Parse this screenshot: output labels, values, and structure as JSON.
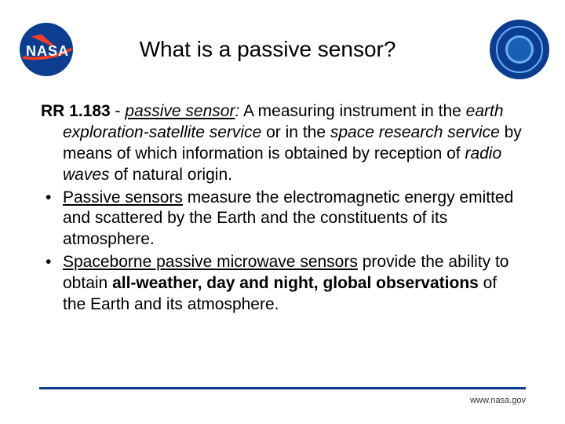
{
  "header": {
    "nasa_wordmark": "NASA",
    "title": "What is a passive sensor?"
  },
  "definition": {
    "ref": "RR 1.183",
    "sep": " - ",
    "term": "passive sensor",
    "colon": ":",
    "pre1": "  A measuring instrument in the ",
    "svc1": "earth exploration-satellite service",
    "mid1": " or in the ",
    "svc2": "space research service",
    "mid2": " by means of which information is obtained by reception of ",
    "rw": "radio waves",
    "tail": " of natural origin."
  },
  "bullets": {
    "b1_term": "Passive sensors",
    "b1_rest": " measure the electromagnetic energy emitted and scattered by the Earth and the constituents of its atmosphere.",
    "b2_term": "Spaceborne passive microwave sensors",
    "b2_mid": " provide the ability to obtain ",
    "b2_bold": "all-weather, day and night, global observations",
    "b2_tail": " of the Earth and its atmosphere."
  },
  "footer": {
    "url": "www.nasa.gov"
  },
  "colors": {
    "nasa_blue": "#0b3d91",
    "nasa_red": "#fc3d21",
    "text": "#000000",
    "background": "#ffffff"
  }
}
